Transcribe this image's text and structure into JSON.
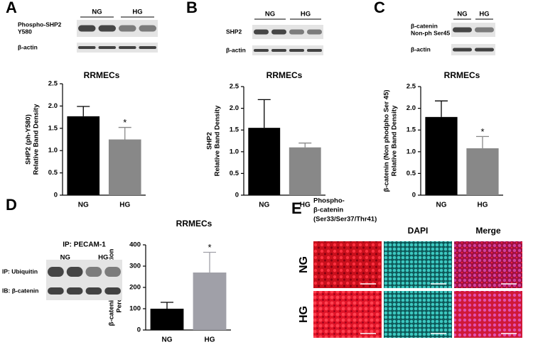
{
  "chart_data": [
    {
      "type": "bar",
      "panel": "A",
      "title": "RRMECs",
      "ylabel": [
        "SHP2 (ph-Y580)",
        "Relative Band Density"
      ],
      "categories": [
        "NG",
        "HG"
      ],
      "values": [
        1.77,
        1.25
      ],
      "errors": [
        0.22,
        0.27
      ],
      "colors": [
        "#000000",
        "#888888"
      ],
      "ylim": [
        0,
        2.5
      ],
      "yticks": [
        0,
        0.5,
        {
          "value": 1,
          "label": "1.0"
        },
        1.5,
        {
          "value": 2,
          "label": "2.0"
        },
        2.5
      ],
      "annotations": [
        {
          "text": "*",
          "category": "HG"
        }
      ]
    },
    {
      "type": "bar",
      "panel": "B",
      "title": "RRMECs",
      "ylabel": [
        "SHP2",
        "Relative Band Density"
      ],
      "categories": [
        "NG",
        "HG"
      ],
      "values": [
        1.55,
        1.1
      ],
      "errors": [
        0.65,
        0.1
      ],
      "colors": [
        "#000000",
        "#888888"
      ],
      "ylim": [
        0,
        2.5
      ],
      "yticks": [
        0,
        0.5,
        {
          "value": 1,
          "label": "1.0"
        },
        1.5,
        {
          "value": 2,
          "label": "2.0"
        },
        2.5
      ],
      "annotations": []
    },
    {
      "type": "bar",
      "panel": "C",
      "title": "RRMECs",
      "ylabel": [
        "β-catenin (Non phodpho Ser 45)",
        "Relative Band Density"
      ],
      "categories": [
        "NG",
        "HG"
      ],
      "values": [
        1.8,
        1.08
      ],
      "errors": [
        0.37,
        0.27
      ],
      "colors": [
        "#000000",
        "#888888"
      ],
      "ylim": [
        0,
        2.5
      ],
      "yticks": [
        0,
        0.5,
        {
          "value": 1,
          "label": "1.0"
        },
        1.5,
        {
          "value": 2,
          "label": "2.0"
        },
        2.5
      ],
      "annotations": [
        {
          "text": "*",
          "category": "HG"
        }
      ]
    },
    {
      "type": "bar",
      "panel": "D",
      "title": "RRMECs",
      "ylabel": [
        "β-catenin Ubiquitination",
        "Percent Control"
      ],
      "categories": [
        "NG",
        "HG"
      ],
      "values": [
        100,
        270
      ],
      "errors": [
        30,
        95
      ],
      "colors": [
        "#000000",
        "#a0a0a8"
      ],
      "ylim": [
        0,
        400
      ],
      "yticks": [
        0,
        100,
        200,
        300,
        400
      ],
      "annotations": [
        {
          "text": "*",
          "category": "HG"
        }
      ]
    }
  ],
  "blots": [
    {
      "groups": [
        "NG",
        "HG"
      ],
      "rows": [
        [
          "Phospho-SHP2",
          "Y580"
        ],
        [
          "β-actin"
        ]
      ]
    },
    {
      "groups": [
        "NG",
        "HG"
      ],
      "rows": [
        [
          "SHP2"
        ],
        [
          "β-actin"
        ]
      ]
    },
    {
      "groups": [
        "NG",
        "HG"
      ],
      "rows": [
        [
          "β-catenin",
          "Non-ph Ser45"
        ],
        [
          "β-actin"
        ]
      ]
    },
    {
      "title": "IP: PECAM-1",
      "groups": [
        "NG",
        "HG"
      ],
      "rows": [
        [
          "IP: Ubiquitin"
        ],
        [
          "IB: β-catenin"
        ]
      ]
    }
  ],
  "microscopy": {
    "panel": "E",
    "columns": [
      [
        "Phospho-",
        "β-catenin",
        "(Ser33/Ser37/Thr41)"
      ],
      [
        "DAPI"
      ],
      [
        "Merge"
      ]
    ],
    "rows": [
      "NG",
      "HG"
    ]
  }
}
